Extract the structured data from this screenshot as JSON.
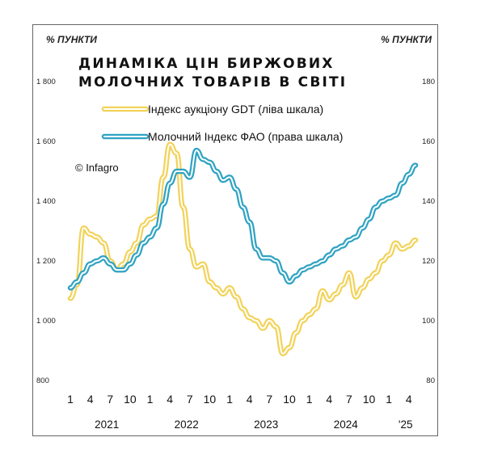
{
  "chart_data": {
    "type": "line",
    "title_lines": [
      "ДИНАМІКА ЦІН БИРЖОВИХ",
      "МОЛОЧНИХ ТОВАРІВ В СВІТІ"
    ],
    "left_unit": "% ПУНКТИ",
    "right_unit": "% ПУНКТИ",
    "copyright": "© Infagro",
    "left_axis": {
      "range": [
        800,
        1800
      ],
      "ticks": [
        "800",
        "1 000",
        "1 200",
        "1 400",
        "1 600",
        "1 800"
      ]
    },
    "right_axis": {
      "range": [
        80,
        180
      ],
      "ticks": [
        "80",
        "100",
        "120",
        "140",
        "160",
        "180"
      ]
    },
    "x_month_labels": [
      "1",
      "4",
      "7",
      "10",
      "1",
      "4",
      "7",
      "10",
      "1",
      "4",
      "7",
      "10",
      "1",
      "4",
      "7",
      "10",
      "1",
      "4"
    ],
    "years": [
      "2021",
      "2022",
      "2023",
      "2024",
      "'25"
    ],
    "legend_style": "top, inside plot",
    "colors": {
      "gdt": "#f2d35a",
      "fao": "#2fa3c3"
    },
    "series": [
      {
        "name": "Індекс аукціону GDT (ліва шкала)",
        "axis": "left",
        "values": [
          1075,
          1120,
          1310,
          1290,
          1280,
          1260,
          1200,
          1170,
          1190,
          1230,
          1260,
          1320,
          1340,
          1350,
          1480,
          1590,
          1560,
          1380,
          1240,
          1180,
          1190,
          1130,
          1110,
          1090,
          1110,
          1080,
          1040,
          1010,
          1000,
          975,
          1000,
          980,
          890,
          910,
          960,
          1000,
          1020,
          1040,
          1100,
          1070,
          1090,
          1120,
          1160,
          1080,
          1110,
          1140,
          1160,
          1200,
          1220,
          1260,
          1240,
          1250,
          1270
        ]
      },
      {
        "name": "Молочний Індекс ФАО (права шкала)",
        "axis": "right",
        "values": [
          111,
          113,
          116,
          119,
          120,
          121,
          119,
          117,
          117,
          119,
          122,
          126,
          128,
          131,
          139,
          146,
          150,
          150,
          148,
          157,
          154,
          153,
          150,
          147,
          148,
          144,
          138,
          133,
          124,
          121,
          121,
          120,
          116,
          113,
          115,
          117,
          118,
          119,
          120,
          122,
          124,
          125,
          127,
          128,
          131,
          134,
          138,
          140,
          141,
          142,
          146,
          149,
          152
        ]
      }
    ]
  }
}
